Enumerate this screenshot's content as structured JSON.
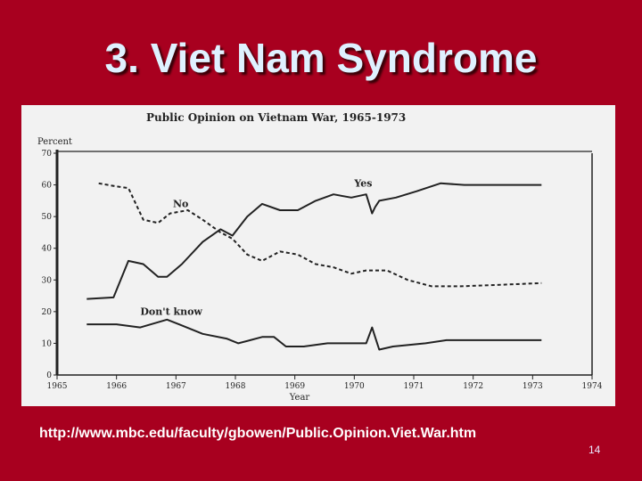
{
  "slide": {
    "title": "3. Viet Nam Syndrome",
    "source_url": "http://www.mbc.edu/faculty/gbowen/Public.Opinion.Viet.War.htm",
    "page_number": "14"
  },
  "colors": {
    "background": "#a8001f",
    "title": "#dff1ff",
    "chart_bg": "#f2f2f2",
    "ink": "#222222"
  },
  "chart_data": {
    "type": "line",
    "title": "Public Opinion on Vietnam War, 1965-1973",
    "ylabel": "Percent",
    "xlabel": "Year",
    "xlim": [
      1965,
      1974
    ],
    "ylim": [
      0,
      70
    ],
    "x_ticks": [
      "1965",
      "1966",
      "1967",
      "1968",
      "1969",
      "1970",
      "1971",
      "1972",
      "1973",
      "1974"
    ],
    "y_ticks": [
      "0",
      "10",
      "20",
      "30",
      "40",
      "50",
      "60",
      "70"
    ],
    "grid": false,
    "series": [
      {
        "name": "Yes",
        "style": "solid",
        "x": [
          1965.5,
          1965.95,
          1966.2,
          1966.45,
          1966.7,
          1966.85,
          1967.1,
          1967.45,
          1967.75,
          1967.95,
          1968.2,
          1968.45,
          1968.75,
          1969.05,
          1969.35,
          1969.65,
          1969.95,
          1970.2,
          1970.3,
          1970.35,
          1970.42,
          1970.7,
          1971.05,
          1971.45,
          1971.85,
          1972.5,
          1973.15
        ],
        "values": [
          24,
          24.5,
          36,
          35,
          31,
          31,
          35,
          42,
          46,
          44,
          50,
          54,
          52,
          52,
          55,
          57,
          56,
          57,
          51,
          53,
          55,
          56,
          58,
          60.5,
          60,
          60,
          60
        ]
      },
      {
        "name": "No",
        "style": "dashed",
        "x": [
          1965.7,
          1966.0,
          1966.2,
          1966.45,
          1966.7,
          1966.9,
          1967.2,
          1967.45,
          1967.75,
          1967.95,
          1968.2,
          1968.45,
          1968.75,
          1969.05,
          1969.35,
          1969.65,
          1969.95,
          1970.2,
          1970.55,
          1970.9,
          1971.3,
          1971.8,
          1972.5,
          1973.15
        ],
        "values": [
          60.5,
          59.5,
          59,
          49,
          48,
          51,
          52,
          49,
          45,
          43,
          38,
          36,
          39,
          38,
          35,
          34,
          32,
          33,
          33,
          30,
          28,
          28,
          28.5,
          29
        ]
      },
      {
        "name": "Don't know",
        "style": "solid",
        "x": [
          1965.5,
          1966.0,
          1966.4,
          1966.85,
          1967.05,
          1967.45,
          1967.85,
          1968.05,
          1968.25,
          1968.45,
          1968.65,
          1968.85,
          1969.15,
          1969.55,
          1969.95,
          1970.2,
          1970.3,
          1970.35,
          1970.42,
          1970.65,
          1971.2,
          1971.55,
          1972.2,
          1973.15
        ],
        "values": [
          16,
          16,
          15,
          17.5,
          16,
          13,
          11.5,
          10,
          11,
          12,
          12,
          9,
          9,
          10,
          10,
          10,
          15,
          12,
          8,
          9,
          10,
          11,
          11,
          11
        ]
      }
    ],
    "annotations": [
      {
        "text": "Yes",
        "x": 1970.0,
        "y": 59.5
      },
      {
        "text": "No",
        "x": 1966.95,
        "y": 53
      },
      {
        "text": "Don't know",
        "x": 1966.4,
        "y": 19
      }
    ]
  }
}
